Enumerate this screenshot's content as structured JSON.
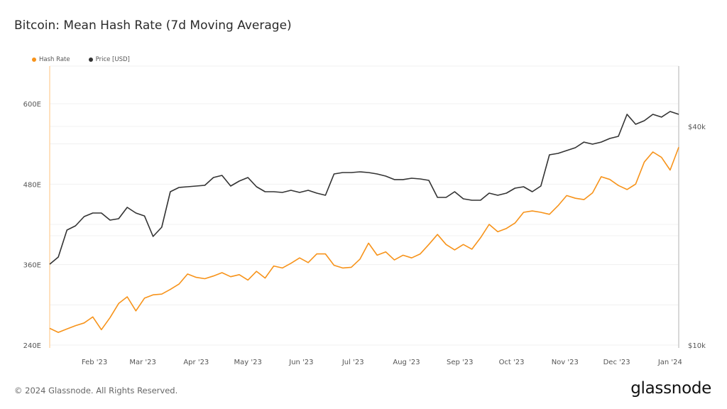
{
  "title": "Bitcoin: Mean Hash Rate (7d Moving Average)",
  "footer": "© 2024 Glassnode. All Rights Reserved.",
  "logo": "glassnode",
  "colors": {
    "hash_rate": "#f7931a",
    "price": "#333333",
    "grid": "#f0f0f0",
    "left_axis": "#ffd7a8",
    "right_axis": "#cccccc"
  },
  "chart_data": {
    "type": "line",
    "title": "Bitcoin: Mean Hash Rate (7d Moving Average)",
    "legend": {
      "placement": "top-left",
      "entries": [
        "Hash Rate",
        "Price [USD]"
      ]
    },
    "grid": true,
    "x_ticks": [
      "Feb '23",
      "Mar '23",
      "Apr '23",
      "May '23",
      "Jun '23",
      "Jul '23",
      "Aug '23",
      "Sep '23",
      "Oct '23",
      "Nov '23",
      "Dec '23",
      "Jan '24"
    ],
    "x_tick_dates": [
      "2023-02-01",
      "2023-03-01",
      "2023-04-01",
      "2023-05-01",
      "2023-06-01",
      "2023-07-01",
      "2023-08-01",
      "2023-09-01",
      "2023-10-01",
      "2023-11-01",
      "2023-12-01",
      "2024-01-01"
    ],
    "xlim": [
      "2023-01-06",
      "2024-01-06"
    ],
    "left_axis": {
      "ticks": [
        240,
        360,
        480,
        600
      ],
      "tick_labels": [
        "240E",
        "360E",
        "480E",
        "600E"
      ],
      "ylim": [
        240,
        600
      ]
    },
    "right_axis": {
      "scale": "log",
      "ticks": [
        10000,
        40000
      ],
      "tick_labels": [
        "$10k",
        "$40k"
      ]
    },
    "x": [
      "2023-01-06",
      "2023-01-11",
      "2023-01-16",
      "2023-01-21",
      "2023-01-26",
      "2023-01-31",
      "2023-02-05",
      "2023-02-10",
      "2023-02-15",
      "2023-02-20",
      "2023-02-25",
      "2023-03-02",
      "2023-03-07",
      "2023-03-12",
      "2023-03-17",
      "2023-03-22",
      "2023-03-27",
      "2023-04-01",
      "2023-04-06",
      "2023-04-11",
      "2023-04-16",
      "2023-04-21",
      "2023-04-26",
      "2023-05-01",
      "2023-05-06",
      "2023-05-11",
      "2023-05-16",
      "2023-05-21",
      "2023-05-26",
      "2023-05-31",
      "2023-06-05",
      "2023-06-10",
      "2023-06-15",
      "2023-06-20",
      "2023-06-25",
      "2023-06-30",
      "2023-07-05",
      "2023-07-10",
      "2023-07-15",
      "2023-07-20",
      "2023-07-25",
      "2023-07-30",
      "2023-08-04",
      "2023-08-09",
      "2023-08-14",
      "2023-08-19",
      "2023-08-24",
      "2023-08-29",
      "2023-09-03",
      "2023-09-08",
      "2023-09-13",
      "2023-09-18",
      "2023-09-23",
      "2023-09-28",
      "2023-10-03",
      "2023-10-08",
      "2023-10-13",
      "2023-10-18",
      "2023-10-23",
      "2023-10-28",
      "2023-11-02",
      "2023-11-07",
      "2023-11-12",
      "2023-11-17",
      "2023-11-22",
      "2023-11-27",
      "2023-12-02",
      "2023-12-07",
      "2023-12-12",
      "2023-12-17",
      "2023-12-22",
      "2023-12-27",
      "2024-01-01",
      "2024-01-06"
    ],
    "series": [
      {
        "name": "Hash Rate",
        "axis": "left",
        "unit": "EH/s",
        "values": [
          265,
          259,
          264,
          269,
          273,
          282,
          263,
          281,
          302,
          312,
          291,
          310,
          315,
          316,
          323,
          331,
          346,
          341,
          339,
          343,
          348,
          342,
          345,
          337,
          350,
          340,
          358,
          355,
          362,
          370,
          363,
          376,
          376,
          359,
          355,
          356,
          368,
          392,
          374,
          379,
          367,
          374,
          370,
          376,
          390,
          405,
          390,
          382,
          390,
          383,
          400,
          420,
          409,
          414,
          422,
          438,
          440,
          438,
          435,
          448,
          463,
          459,
          457,
          467,
          491,
          487,
          478,
          472,
          480,
          513,
          528,
          520,
          501,
          535
        ]
      },
      {
        "name": "Price [USD]",
        "axis": "right",
        "unit": "USD",
        "values": [
          16700,
          17470,
          20730,
          21300,
          22580,
          23100,
          23100,
          22080,
          22280,
          23940,
          23100,
          22680,
          19910,
          21110,
          26440,
          27160,
          27280,
          27410,
          27530,
          28930,
          29320,
          27410,
          28290,
          28930,
          27280,
          26440,
          26440,
          26320,
          26680,
          26320,
          26680,
          26200,
          25850,
          29580,
          29850,
          29850,
          29990,
          29850,
          29580,
          29190,
          28550,
          28550,
          28800,
          28670,
          28410,
          25500,
          25500,
          26440,
          25270,
          25050,
          25050,
          26200,
          25850,
          26200,
          27040,
          27280,
          26440,
          27410,
          33410,
          33710,
          34330,
          34940,
          36220,
          35750,
          36220,
          37050,
          37560,
          43190,
          40550,
          41460,
          43190,
          42420,
          43970,
          43190
        ]
      }
    ]
  }
}
